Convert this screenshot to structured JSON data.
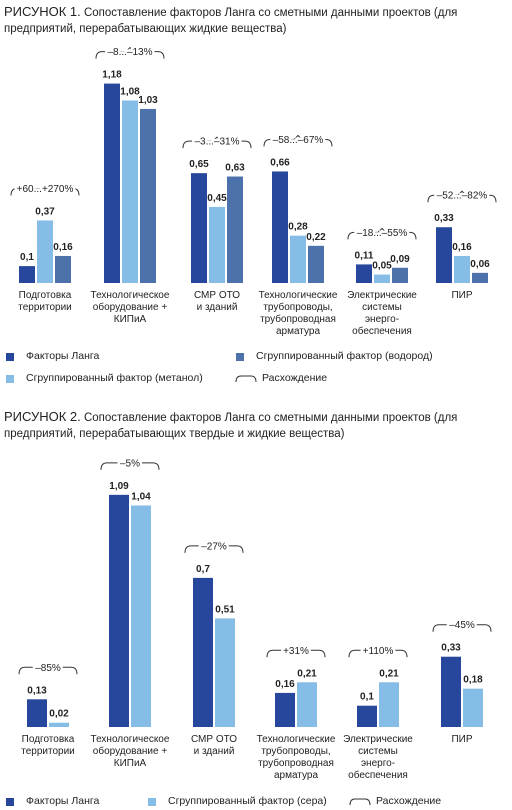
{
  "chart_data": [
    {
      "type": "bar",
      "label": "РИСУНОК 1.",
      "title": "Сопоставление факторов Ланга со сметными данными проектов (для предприятий, перерабатывающих жидкие вещества)",
      "categories": [
        "Подготовка\nтерритории",
        "Технологическое\nоборудование +\nКИПиА",
        "СМР ОТО\nи зданий",
        "Технологические\nтрубопроводы,\nтрубопроводная\nарматура",
        "Электрические\nсистемы\nэнерго-\nобеспечения",
        "ПИР"
      ],
      "series": [
        {
          "name": "Факторы Ланга",
          "color": "#26479b",
          "values": [
            0.1,
            1.18,
            0.65,
            0.66,
            0.11,
            0.33
          ],
          "value_labels": [
            "0,1",
            "1,18",
            "0,65",
            "0,66",
            "0,11",
            "0,33"
          ]
        },
        {
          "name": "Сгруппированный фактор (метанол)",
          "color": "#86bde6",
          "values": [
            0.37,
            1.08,
            0.45,
            0.28,
            0.05,
            0.16
          ],
          "value_labels": [
            "0,37",
            "1,08",
            "0,45",
            "0,28",
            "0,05",
            "0,16"
          ]
        },
        {
          "name": "Сгруппированный фактор (водород)",
          "color": "#4d71ab",
          "values": [
            0.16,
            1.03,
            0.63,
            0.22,
            0.09,
            0.06
          ],
          "value_labels": [
            "0,16",
            "1,03",
            "0,63",
            "0,22",
            "0,09",
            "0,06"
          ]
        }
      ],
      "divergence": [
        "+60...+270%",
        "–8...–13%",
        "–3...–31%",
        "–58...–67%",
        "–18...–55%",
        "–52...–82%"
      ],
      "divergence_legend": "Расхождение"
    },
    {
      "type": "bar",
      "label": "РИСУНОК 2.",
      "title": "Сопоставление факторов Ланга со сметными данными проектов (для предприятий, перерабатывающих твердые и жидкие вещества)",
      "categories": [
        "Подготовка\nтерритории",
        "Технологическое\nоборудование +\nКИПиА",
        "СМР ОТО\nи зданий",
        "Технологические\nтрубопроводы,\nтрубопроводная\nарматура",
        "Электрические\nсистемы\nэнерго-\nобеспечения",
        "ПИР"
      ],
      "series": [
        {
          "name": "Факторы Ланга",
          "color": "#26479b",
          "values": [
            0.13,
            1.09,
            0.7,
            0.16,
            0.1,
            0.33
          ],
          "value_labels": [
            "0,13",
            "1,09",
            "0,7",
            "0,16",
            "0,1",
            "0,33"
          ]
        },
        {
          "name": "Сгруппированный фактор (сера)",
          "color": "#86bde6",
          "values": [
            0.02,
            1.04,
            0.51,
            0.21,
            0.21,
            0.18
          ],
          "value_labels": [
            "0,02",
            "1,04",
            "0,51",
            "0,21",
            "0,21",
            "0,18"
          ]
        }
      ],
      "divergence": [
        "–85%",
        "–5%",
        "–27%",
        "+31%",
        "+110%",
        "–45%"
      ],
      "divergence_legend": "Расхождение"
    }
  ]
}
